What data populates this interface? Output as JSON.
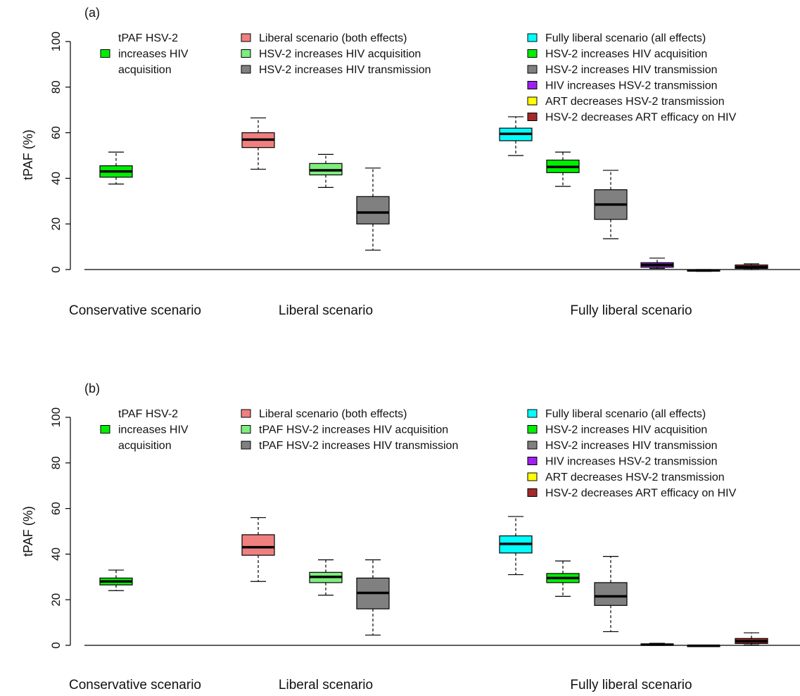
{
  "colors": {
    "tpaf": "#00ee00",
    "liberal_both": "#f08080",
    "acq_light": "#7ded7d",
    "transmission": "#808080",
    "fully_liberal": "#00ffff",
    "acquisition": "#00ee00",
    "hiv_hsv2": "#a020f0",
    "art_hsv2": "#ffff00",
    "art_efficacy": "#a52a2a",
    "median": "#000000"
  },
  "chart_data": [
    {
      "panel": "(a)",
      "type": "box",
      "ylabel": "tPAF (%)",
      "ylim": [
        0,
        100
      ],
      "yticks": [
        0,
        20,
        40,
        60,
        80,
        100
      ],
      "scenarios": [
        "Conservative scenario",
        "Liberal scenario",
        "Fully liberal scenario"
      ],
      "legends": [
        {
          "group": "conservative",
          "items": [
            {
              "label": "tPAF HSV-2 increases HIV acquisition",
              "lines": [
                "tPAF HSV-2",
                "increases HIV",
                "acquisition"
              ],
              "color": "tpaf"
            }
          ]
        },
        {
          "group": "liberal",
          "items": [
            {
              "label": "Liberal scenario (both effects)",
              "color": "liberal_both"
            },
            {
              "label": "HSV-2 increases HIV acquisition",
              "color": "acq_light"
            },
            {
              "label": "HSV-2 increases HIV transmission",
              "color": "transmission"
            }
          ]
        },
        {
          "group": "fully_liberal",
          "items": [
            {
              "label": "Fully liberal scenario (all effects)",
              "color": "fully_liberal"
            },
            {
              "label": "HSV-2 increases HIV acquisition",
              "color": "acquisition"
            },
            {
              "label": "HSV-2 increases HIV transmission",
              "color": "transmission"
            },
            {
              "label": "HIV increases HSV-2 transmission",
              "color": "hiv_hsv2"
            },
            {
              "label": "ART decreases HSV-2 transmission",
              "color": "art_hsv2"
            },
            {
              "label": "HSV-2 decreases ART efficacy on HIV",
              "color": "art_efficacy"
            }
          ]
        }
      ],
      "boxes": [
        {
          "name": "tPAF HSV-2 increases HIV acquisition",
          "scenario": "Conservative scenario",
          "color": "tpaf",
          "min": 37.5,
          "q1": 40.5,
          "median": 43,
          "q3": 45.5,
          "max": 51.5
        },
        {
          "name": "Liberal scenario (both effects)",
          "scenario": "Liberal scenario",
          "color": "liberal_both",
          "min": 44,
          "q1": 53.5,
          "median": 57,
          "q3": 60,
          "max": 66.5
        },
        {
          "name": "HSV-2 increases HIV acquisition",
          "scenario": "Liberal scenario",
          "color": "acq_light",
          "min": 36,
          "q1": 41.5,
          "median": 43.5,
          "q3": 46.5,
          "max": 50.5
        },
        {
          "name": "HSV-2 increases HIV transmission",
          "scenario": "Liberal scenario",
          "color": "transmission",
          "min": 8.5,
          "q1": 20,
          "median": 25,
          "q3": 32,
          "max": 44.5
        },
        {
          "name": "Fully liberal scenario (all effects)",
          "scenario": "Fully liberal scenario",
          "color": "fully_liberal",
          "min": 50,
          "q1": 56.5,
          "median": 59.5,
          "q3": 62,
          "max": 67
        },
        {
          "name": "HSV-2 increases HIV acquisition",
          "scenario": "Fully liberal scenario",
          "color": "acquisition",
          "min": 36.5,
          "q1": 42.5,
          "median": 45,
          "q3": 48,
          "max": 51.5
        },
        {
          "name": "HSV-2 increases HIV transmission",
          "scenario": "Fully liberal scenario",
          "color": "transmission",
          "min": 13.5,
          "q1": 22,
          "median": 28.5,
          "q3": 35,
          "max": 43.5
        },
        {
          "name": "HIV increases HSV-2 transmission",
          "scenario": "Fully liberal scenario",
          "color": "hiv_hsv2",
          "min": 0.5,
          "q1": 1,
          "median": 2,
          "q3": 3,
          "max": 5
        },
        {
          "name": "ART decreases HSV-2 transmission",
          "scenario": "Fully liberal scenario",
          "color": "art_hsv2",
          "min": -0.8,
          "q1": -0.6,
          "median": -0.4,
          "q3": -0.2,
          "max": 0
        },
        {
          "name": "HSV-2 decreases ART efficacy on HIV",
          "scenario": "Fully liberal scenario",
          "color": "art_efficacy",
          "min": 0,
          "q1": 0.5,
          "median": 1,
          "q3": 2,
          "max": 2.5
        }
      ]
    },
    {
      "panel": "(b)",
      "type": "box",
      "ylabel": "tPAF (%)",
      "ylim": [
        0,
        100
      ],
      "yticks": [
        0,
        20,
        40,
        60,
        80,
        100
      ],
      "scenarios": [
        "Conservative scenario",
        "Liberal scenario",
        "Fully liberal scenario"
      ],
      "legends": [
        {
          "group": "conservative",
          "items": [
            {
              "label": "tPAF HSV-2 increases HIV acquisition",
              "lines": [
                "tPAF HSV-2",
                "increases HIV",
                "acquisition"
              ],
              "color": "tpaf"
            }
          ]
        },
        {
          "group": "liberal",
          "items": [
            {
              "label": "Liberal scenario (both effects)",
              "color": "liberal_both"
            },
            {
              "label": "tPAF HSV-2 increases HIV acquisition",
              "color": "acq_light"
            },
            {
              "label": "tPAF HSV-2 increases HIV transmission",
              "color": "transmission"
            }
          ]
        },
        {
          "group": "fully_liberal",
          "items": [
            {
              "label": "Fully liberal scenario (all effects)",
              "color": "fully_liberal"
            },
            {
              "label": "HSV-2 increases HIV acquisition",
              "color": "acquisition"
            },
            {
              "label": "HSV-2 increases HIV transmission",
              "color": "transmission"
            },
            {
              "label": "HIV increases HSV-2 transmission",
              "color": "hiv_hsv2"
            },
            {
              "label": "ART decreases HSV-2 transmission",
              "color": "art_hsv2"
            },
            {
              "label": "HSV-2 decreases ART efficacy on HIV",
              "color": "art_efficacy"
            }
          ]
        }
      ],
      "boxes": [
        {
          "name": "tPAF HSV-2 increases HIV acquisition",
          "scenario": "Conservative scenario",
          "color": "tpaf",
          "min": 24,
          "q1": 26.5,
          "median": 28,
          "q3": 29.5,
          "max": 33
        },
        {
          "name": "Liberal scenario (both effects)",
          "scenario": "Liberal scenario",
          "color": "liberal_both",
          "min": 28,
          "q1": 39.5,
          "median": 43,
          "q3": 48.5,
          "max": 56
        },
        {
          "name": "tPAF HSV-2 increases HIV acquisition",
          "scenario": "Liberal scenario",
          "color": "acq_light",
          "min": 22,
          "q1": 27.5,
          "median": 30,
          "q3": 32,
          "max": 37.5
        },
        {
          "name": "tPAF HSV-2 increases HIV transmission",
          "scenario": "Liberal scenario",
          "color": "transmission",
          "min": 4.5,
          "q1": 16,
          "median": 23,
          "q3": 29.5,
          "max": 37.5
        },
        {
          "name": "Fully liberal scenario (all effects)",
          "scenario": "Fully liberal scenario",
          "color": "fully_liberal",
          "min": 31,
          "q1": 40.5,
          "median": 44.5,
          "q3": 48,
          "max": 56.5
        },
        {
          "name": "HSV-2 increases HIV acquisition",
          "scenario": "Fully liberal scenario",
          "color": "acquisition",
          "min": 21.5,
          "q1": 27.5,
          "median": 29.5,
          "q3": 31.5,
          "max": 37
        },
        {
          "name": "HSV-2 increases HIV transmission",
          "scenario": "Fully liberal scenario",
          "color": "transmission",
          "min": 6,
          "q1": 17.5,
          "median": 21.5,
          "q3": 27.5,
          "max": 39
        },
        {
          "name": "HIV increases HSV-2 transmission",
          "scenario": "Fully liberal scenario",
          "color": "hiv_hsv2",
          "min": 0,
          "q1": 0.1,
          "median": 0.3,
          "q3": 0.6,
          "max": 0.9
        },
        {
          "name": "ART decreases HSV-2 transmission",
          "scenario": "Fully liberal scenario",
          "color": "art_hsv2",
          "min": -0.4,
          "q1": -0.3,
          "median": -0.2,
          "q3": -0.1,
          "max": 0
        },
        {
          "name": "HSV-2 decreases ART efficacy on HIV",
          "scenario": "Fully liberal scenario",
          "color": "art_efficacy",
          "min": 0.2,
          "q1": 0.8,
          "median": 1.8,
          "q3": 3,
          "max": 5.5
        }
      ]
    }
  ]
}
